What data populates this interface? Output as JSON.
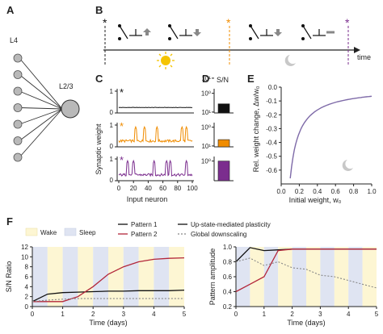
{
  "panels": {
    "A": {
      "label": "A",
      "layer_in": "L4",
      "layer_out": "L2/3"
    },
    "B": {
      "label": "B",
      "time_label": "time"
    },
    "C": {
      "label": "C",
      "ylabel": "Synaptic weight",
      "xlabel": "Input neuron",
      "yticks": [
        "0",
        "1"
      ],
      "xticks": [
        "0",
        "20",
        "40",
        "60",
        "80",
        "100"
      ]
    },
    "D": {
      "label": "D",
      "title": "S/N",
      "yticks": [
        "10⁰",
        "10¹"
      ]
    },
    "E": {
      "label": "E",
      "ylabel": "Rel. weight change, Δw/w₀",
      "xlabel": "Initial weight, w₀",
      "yticks": [
        "0.0",
        "-0.1",
        "-0.2",
        "-0.3",
        "-0.4",
        "-0.5",
        "-0.6"
      ],
      "xticks": [
        "0.0",
        "0.2",
        "0.4",
        "0.6",
        "0.8",
        "1.0"
      ]
    },
    "F": {
      "label": "F"
    }
  },
  "legend": {
    "wake": "Wake",
    "sleep": "Sleep",
    "pattern1": "Pattern 1",
    "pattern2": "Pattern 2",
    "upstate": "Up-state-mediated plasticity",
    "global": "Global downscaling"
  },
  "colors": {
    "black": "#111111",
    "orange": "#f08c00",
    "purple": "#7b2d8e",
    "red": "#b3273a",
    "wake_bg": "#fdf6d3",
    "sleep_bg": "#dfe4f2",
    "gray": "#999999"
  },
  "chart_data": [
    {
      "type": "bar",
      "title": "S/N",
      "categories": [
        "black",
        "orange",
        "purple"
      ],
      "values": [
        2,
        1.5,
        10
      ],
      "ylim": [
        0.5,
        20
      ],
      "log_y": true
    },
    {
      "type": "line",
      "xlabel": "Initial weight, w₀",
      "ylabel": "Rel. weight change, Δw/w₀",
      "x": [
        0.1,
        0.15,
        0.2,
        0.3,
        0.4,
        0.5,
        0.6,
        0.7,
        0.8,
        0.9,
        1.0
      ],
      "series": [
        {
          "values": [
            -0.66,
            -0.44,
            -0.33,
            -0.22,
            -0.16,
            -0.13,
            -0.11,
            -0.09,
            -0.08,
            -0.07,
            -0.06
          ]
        }
      ],
      "xlim": [
        0,
        1
      ],
      "ylim": [
        -0.7,
        0
      ]
    },
    {
      "type": "line",
      "xlabel": "Time (days)",
      "ylabel": "S/N Ratio",
      "x": [
        0,
        0.5,
        1,
        1.5,
        2,
        2.5,
        3,
        3.5,
        4,
        4.5,
        5
      ],
      "series": [
        {
          "name": "Pattern 1",
          "values": [
            1,
            2.5,
            2.8,
            2.9,
            3,
            3.1,
            3.1,
            3.2,
            3.2,
            3.2,
            3.3
          ]
        },
        {
          "name": "Pattern 2",
          "values": [
            1,
            1,
            1,
            2,
            4,
            6.5,
            8,
            9,
            9.5,
            9.7,
            9.8
          ]
        },
        {
          "name": "Global downscaling",
          "values": [
            1,
            1.3,
            1.5,
            1.6,
            1.6,
            1.6,
            1.6,
            1.6,
            1.6,
            1.6,
            1.6
          ]
        }
      ],
      "xlim": [
        0,
        5
      ],
      "ylim": [
        0,
        12
      ],
      "xticks": [
        "0",
        "1",
        "2",
        "3",
        "4",
        "5"
      ],
      "yticks": [
        "0",
        "2",
        "4",
        "6",
        "8",
        "10",
        "12"
      ]
    },
    {
      "type": "line",
      "xlabel": "Time (days)",
      "ylabel": "Pattern amplitude",
      "x": [
        0,
        0.5,
        1,
        1.5,
        2,
        2.5,
        3,
        3.5,
        4,
        4.5,
        5
      ],
      "series": [
        {
          "name": "Pattern 1",
          "values": [
            0.8,
            0.99,
            0.95,
            0.96,
            0.97,
            0.97,
            0.97,
            0.97,
            0.97,
            0.97,
            0.97
          ]
        },
        {
          "name": "Pattern 2",
          "values": [
            0.4,
            0.5,
            0.6,
            0.95,
            0.97,
            0.97,
            0.97,
            0.97,
            0.97,
            0.97,
            0.97
          ]
        },
        {
          "name": "Global downscaling",
          "values": [
            0.8,
            0.85,
            0.75,
            0.8,
            0.72,
            0.7,
            0.62,
            0.6,
            0.55,
            0.5,
            0.45
          ]
        }
      ],
      "xlim": [
        0,
        5
      ],
      "ylim": [
        0.2,
        1.0
      ],
      "xticks": [
        "0",
        "1",
        "2",
        "3",
        "4",
        "5"
      ],
      "yticks": [
        "0.2",
        "0.4",
        "0.6",
        "0.8",
        "1.0"
      ]
    }
  ]
}
